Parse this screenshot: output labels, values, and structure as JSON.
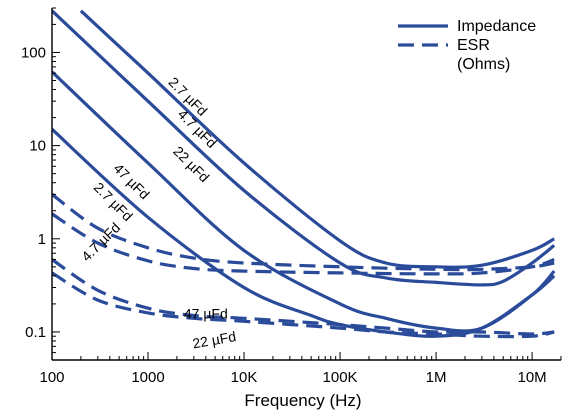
{
  "chart_data": {
    "type": "line",
    "xlabel": "Frequency (Hz)",
    "x_scale": "log",
    "y_scale": "log",
    "xlim": [
      100,
      20000000
    ],
    "ylim": [
      0.05,
      300
    ],
    "x_ticks": [
      {
        "value": 100,
        "label": "100"
      },
      {
        "value": 1000,
        "label": "1000"
      },
      {
        "value": 10000,
        "label": "10K"
      },
      {
        "value": 100000,
        "label": "100K"
      },
      {
        "value": 1000000,
        "label": "1M"
      },
      {
        "value": 10000000,
        "label": "10M"
      }
    ],
    "y_ticks": [
      {
        "value": 0.1,
        "label": "0.1"
      },
      {
        "value": 1,
        "label": "1"
      },
      {
        "value": 10,
        "label": "10"
      },
      {
        "value": 100,
        "label": "100"
      }
    ],
    "legend": {
      "placement": "top-right",
      "entries": [
        {
          "label": "Impedance",
          "style": "solid"
        },
        {
          "label": "ESR",
          "style": "dashed"
        },
        {
          "label": "(Ohms)",
          "style": "none"
        }
      ]
    },
    "line_color": "#2a4a9a",
    "grid": false,
    "series": [
      {
        "kind": "impedance",
        "style": "solid",
        "x": [
          200,
          1000,
          10000,
          100000,
          300000,
          1000000,
          3000000,
          10000000,
          17000000
        ],
        "y": [
          280,
          60,
          6.5,
          0.95,
          0.55,
          0.5,
          0.52,
          0.75,
          1.0
        ]
      },
      {
        "kind": "impedance",
        "style": "solid",
        "x": [
          100,
          1000,
          10000,
          100000,
          300000,
          1000000,
          3000000,
          5000000,
          10000000,
          17000000
        ],
        "y": [
          280,
          30,
          3.3,
          0.55,
          0.38,
          0.34,
          0.32,
          0.35,
          0.55,
          0.85
        ]
      },
      {
        "kind": "impedance",
        "style": "solid",
        "x": [
          100,
          1000,
          10000,
          100000,
          300000,
          1000000,
          3000000,
          10000000,
          17000000
        ],
        "y": [
          62,
          6.5,
          0.75,
          0.2,
          0.14,
          0.11,
          0.11,
          0.25,
          0.45
        ]
      },
      {
        "kind": "impedance",
        "style": "solid",
        "x": [
          100,
          1000,
          10000,
          50000,
          100000,
          300000,
          1000000,
          3000000,
          10000000,
          17000000
        ],
        "y": [
          15,
          1.7,
          0.3,
          0.15,
          0.12,
          0.1,
          0.09,
          0.11,
          0.25,
          0.4
        ]
      },
      {
        "kind": "esr",
        "style": "dashed",
        "x": [
          100,
          300,
          1000,
          3000,
          10000,
          100000,
          1000000,
          3000000,
          10000000,
          17000000
        ],
        "y": [
          3.0,
          1.3,
          0.8,
          0.62,
          0.55,
          0.5,
          0.47,
          0.47,
          0.5,
          0.55
        ]
      },
      {
        "kind": "esr",
        "style": "dashed",
        "x": [
          100,
          300,
          1000,
          3000,
          10000,
          100000,
          1000000,
          3000000,
          10000000,
          17000000
        ],
        "y": [
          1.85,
          0.9,
          0.58,
          0.48,
          0.45,
          0.43,
          0.42,
          0.43,
          0.5,
          0.6
        ]
      },
      {
        "kind": "esr",
        "style": "dashed",
        "x": [
          100,
          300,
          1000,
          3000,
          10000,
          100000,
          300000,
          1000000,
          3000000,
          10000000,
          17000000
        ],
        "y": [
          0.6,
          0.28,
          0.18,
          0.15,
          0.14,
          0.12,
          0.11,
          0.1,
          0.1,
          0.095,
          0.1
        ]
      },
      {
        "kind": "esr",
        "style": "dashed",
        "x": [
          100,
          300,
          1000,
          3000,
          10000,
          100000,
          300000,
          1000000,
          3000000,
          10000000,
          17000000
        ],
        "y": [
          0.43,
          0.22,
          0.16,
          0.14,
          0.13,
          0.11,
          0.1,
          0.095,
          0.09,
          0.09,
          0.1
        ]
      }
    ],
    "annotations": [
      {
        "text": "2.7 µFd",
        "x": 2400,
        "y": 31,
        "rotate": 45
      },
      {
        "text": "4.7 µFd",
        "x": 3000,
        "y": 14,
        "rotate": 45
      },
      {
        "text": "22 µFd",
        "x": 2600,
        "y": 5.8,
        "rotate": 45
      },
      {
        "text": "47 µFd",
        "x": 620,
        "y": 3.8,
        "rotate": 45
      },
      {
        "text": "2.7 µFd",
        "x": 400,
        "y": 2.3,
        "rotate": 45
      },
      {
        "text": "4.7 µFd",
        "x": 350,
        "y": 0.85,
        "rotate": -45
      },
      {
        "text": "47 µFd",
        "x": 4000,
        "y": 0.14,
        "rotate": 0
      },
      {
        "text": "22 µFd",
        "x": 5000,
        "y": 0.073,
        "rotate": -10
      }
    ]
  }
}
